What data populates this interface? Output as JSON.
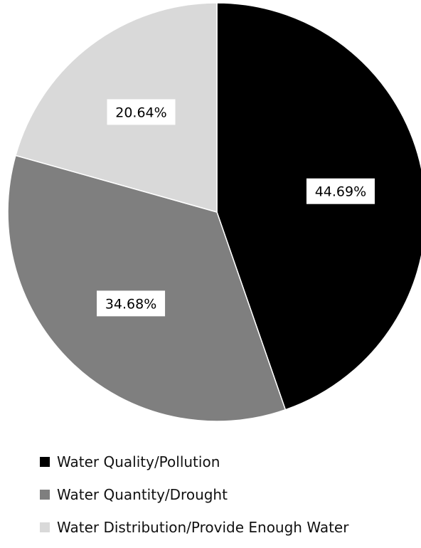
{
  "chart_data": {
    "type": "pie",
    "labels": [
      "Water Quality/Pollution",
      "Water Quantity/Drought",
      "Water Distribution/Provide Enough Water"
    ],
    "values": [
      44.69,
      34.68,
      20.64
    ],
    "value_labels": [
      "44.69%",
      "34.68%",
      "20.64%"
    ],
    "colors": [
      "#000000",
      "#7f7f7f",
      "#d9d9d9"
    ],
    "start_angle_deg": 0,
    "direction": "clockwise",
    "legend_position": "bottom"
  }
}
